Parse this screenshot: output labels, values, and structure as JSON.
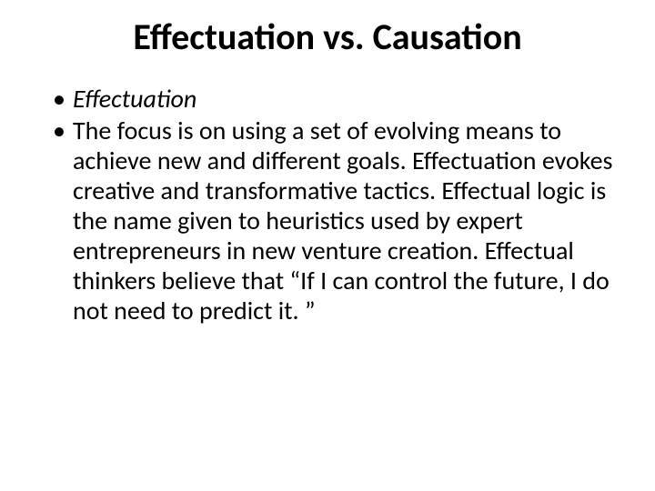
{
  "slide": {
    "background_color": "#ffffff",
    "text_color": "#000000",
    "font_family": "Calibri",
    "title": {
      "text": "Effectuation vs. Causation",
      "fontsize": 40,
      "font_weight": 700,
      "align": "center"
    },
    "bullets": [
      {
        "text": "Effectuation",
        "fontsize": 28,
        "italic": true
      },
      {
        "text": "The focus is on using a set of evolving means to achieve new and different goals. Effectuation evokes creative and transformative tactics. Effectual logic is the name given to heuristics used by expert entrepreneurs in new venture creation. Effectual thinkers believe that “If I can control the future, I do not need to predict it. ”",
        "fontsize": 28,
        "italic": false
      }
    ]
  }
}
